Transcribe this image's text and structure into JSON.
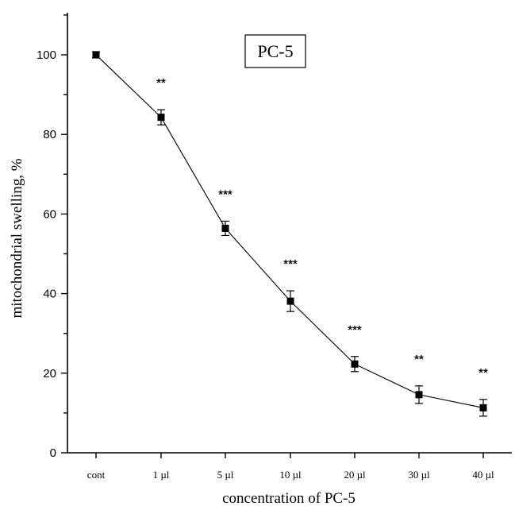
{
  "chart_data": {
    "type": "line",
    "title": "",
    "xlabel": "concentration of PC-5",
    "ylabel": "mitochondrial swelling, %",
    "categories": [
      "cont",
      "1 µl",
      "5 µl",
      "10 µl",
      "20 µl",
      "30 µl",
      "40 µl"
    ],
    "series": [
      {
        "name": "PC-5",
        "values": [
          100,
          84.3,
          56.4,
          38.1,
          22.3,
          14.6,
          11.3
        ],
        "errors": [
          0.8,
          1.9,
          1.8,
          2.6,
          1.9,
          2.2,
          2.1
        ],
        "significance": [
          "",
          "**",
          "***",
          "***",
          "***",
          "**",
          "**"
        ]
      }
    ],
    "yticks": [
      0,
      20,
      40,
      60,
      80,
      100
    ],
    "ylim": [
      0,
      110
    ],
    "grid": false,
    "legend": {
      "text": "PC-5",
      "position": "top-center"
    }
  }
}
